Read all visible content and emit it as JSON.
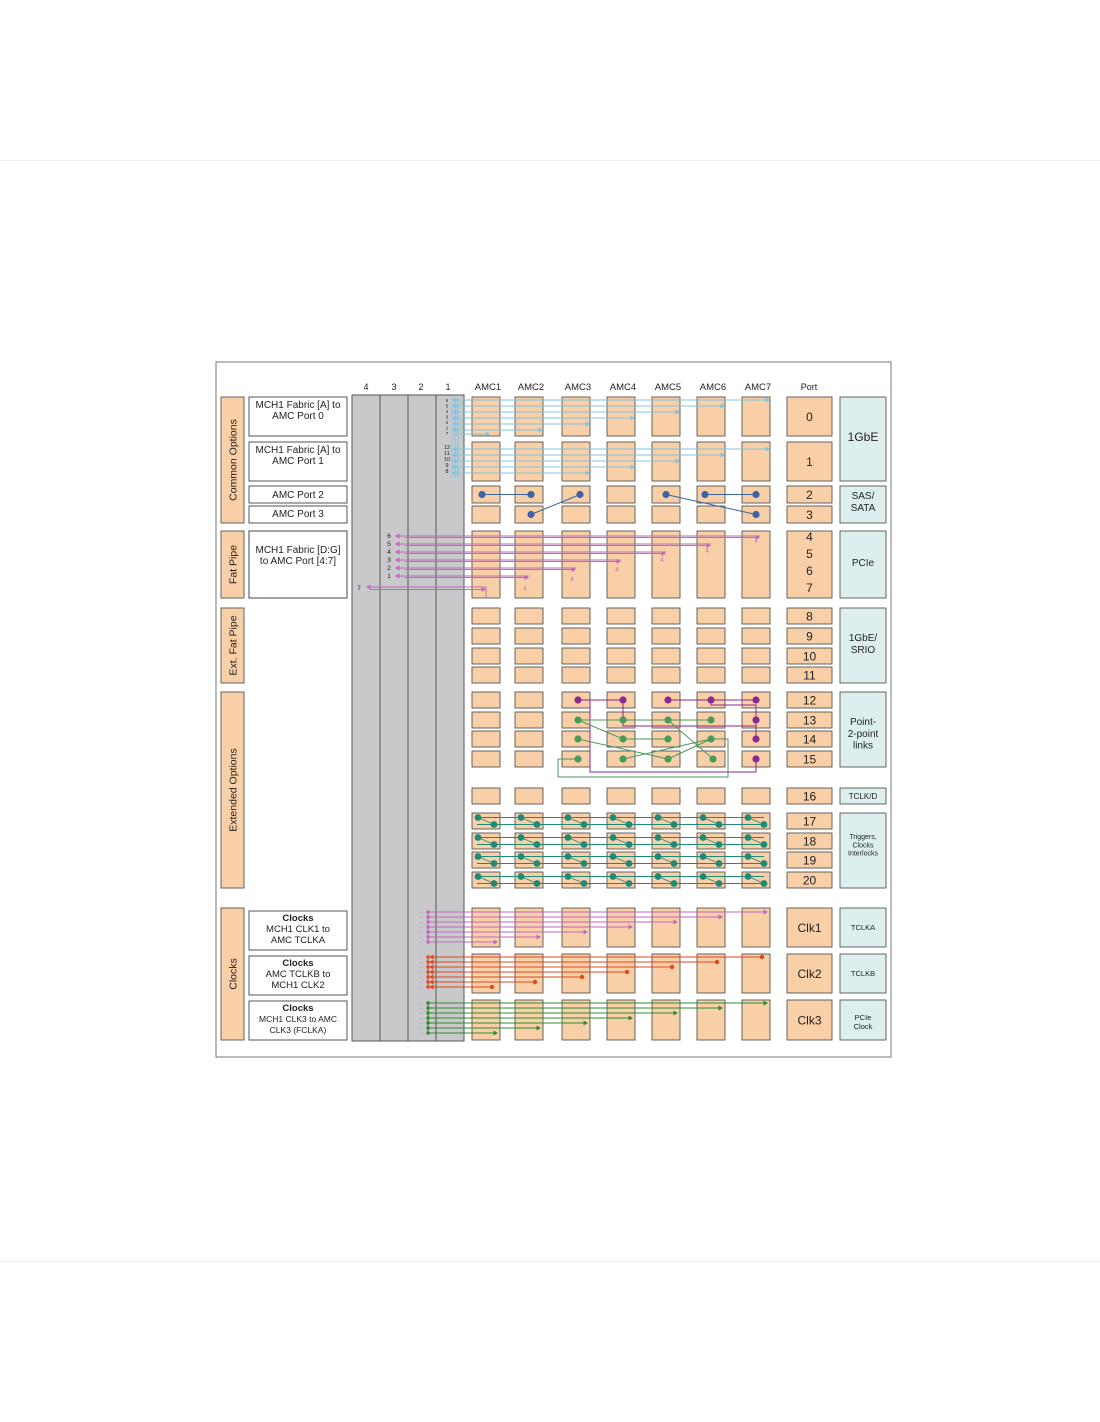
{
  "slot_headers": [
    "4",
    "3",
    "2",
    "1"
  ],
  "amc_headers": [
    "AMC1",
    "AMC2",
    "AMC3",
    "AMC4",
    "AMC5",
    "AMC6",
    "AMC7"
  ],
  "port_header": "Port",
  "groups": [
    {
      "id": "common",
      "label": "Common Options"
    },
    {
      "id": "fatpipe",
      "label": "Fat Pipe"
    },
    {
      "id": "extfat",
      "label": "Ext. Fat Pipe"
    },
    {
      "id": "extended",
      "label": "Extended Options"
    },
    {
      "id": "clocks",
      "label": "Clocks"
    }
  ],
  "descriptions": [
    {
      "id": "p0",
      "lines": [
        "MCH1 Fabric [A] to",
        "AMC Port 0"
      ]
    },
    {
      "id": "p1",
      "lines": [
        "MCH1 Fabric [A] to",
        "AMC Port 1"
      ]
    },
    {
      "id": "p2",
      "lines": [
        "AMC Port 2"
      ]
    },
    {
      "id": "p3",
      "lines": [
        "AMC Port 3"
      ]
    },
    {
      "id": "fp",
      "lines": [
        "MCH1 Fabric [D:G]",
        "to AMC Port [4:7]"
      ]
    },
    {
      "id": "clk1",
      "title": "Clocks",
      "lines": [
        "MCH1 CLK1 to",
        "AMC TCLKA"
      ]
    },
    {
      "id": "clk2",
      "title": "Clocks",
      "lines": [
        "AMC TCLKB to",
        "MCH1 CLK2"
      ]
    },
    {
      "id": "clk3",
      "title": "Clocks",
      "lines": [
        "MCH1 CLK3 to AMC",
        "CLK3 (FCLKA)"
      ]
    }
  ],
  "ports": [
    "0",
    "1",
    "2",
    "3",
    "4",
    "5",
    "6",
    "7",
    "8",
    "9",
    "10",
    "11",
    "12",
    "13",
    "14",
    "15",
    "16",
    "17",
    "18",
    "19",
    "20",
    "Clk1",
    "Clk2",
    "Clk3"
  ],
  "functions": [
    {
      "id": "1gbe",
      "lines": [
        "1GbE"
      ]
    },
    {
      "id": "sas",
      "lines": [
        "SAS/",
        "SATA"
      ]
    },
    {
      "id": "pcie",
      "lines": [
        "PCIe"
      ]
    },
    {
      "id": "srio",
      "lines": [
        "1GbE/",
        "SRIO"
      ]
    },
    {
      "id": "p2p",
      "lines": [
        "Point-",
        "2-point",
        "links"
      ]
    },
    {
      "id": "tclkd",
      "lines": [
        "TCLK/D"
      ]
    },
    {
      "id": "trig",
      "lines": [
        "Triggers,",
        "Clocks",
        "Interlocks"
      ]
    },
    {
      "id": "tclka",
      "lines": [
        "TCLKA"
      ]
    },
    {
      "id": "tclkb",
      "lines": [
        "TCLKB"
      ]
    },
    {
      "id": "pcieclk",
      "lines": [
        "PCIe",
        "Clock"
      ]
    }
  ],
  "channel_numbers": {
    "port0": [
      "6",
      "5",
      "4",
      "3",
      "2",
      "1",
      "7"
    ],
    "port1": [
      "12",
      "11",
      "10",
      "9",
      "8"
    ],
    "fatpipe": [
      "6",
      "5",
      "4",
      "3",
      "2",
      "1",
      "7"
    ]
  },
  "colors": {
    "amc_block": "#f8cfa6",
    "side_block": "#f8cfa6",
    "function_box": "#dcefee",
    "slot_column": "#c9c9cb",
    "fabric_a": "#7fc3e0",
    "sata": "#3e64a8",
    "fat_pipe": "#c266c2",
    "p2p_purple": "#8a2a8f",
    "p2p_green": "#4a9a5a",
    "triggers": "#1f8a78",
    "tclka": "#c266c2",
    "tclkb": "#e0481f",
    "pcie_clock": "#2e8b2e"
  }
}
